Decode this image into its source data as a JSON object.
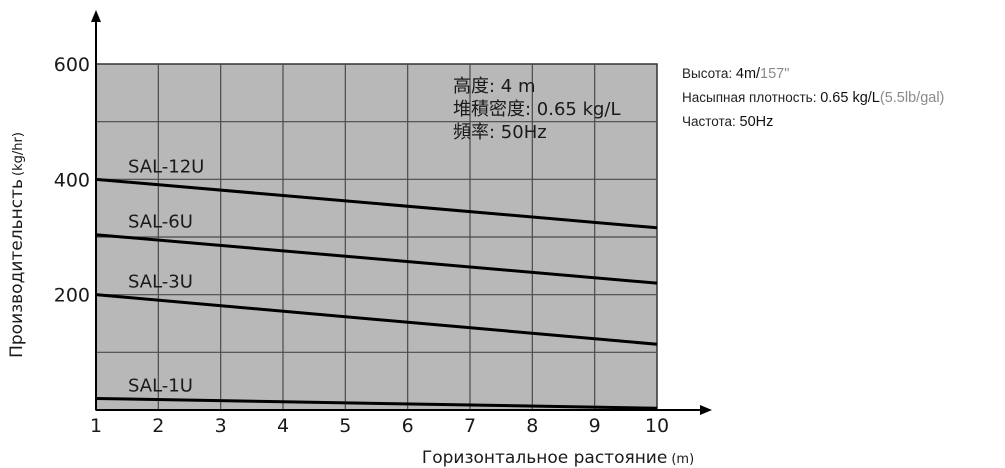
{
  "chart_data": {
    "type": "line",
    "ylabel": "Производительнсть",
    "ylabel_unit": "(kg/hr)",
    "xlabel": "Горизонтальное растояние",
    "xlabel_unit": "(m)",
    "xlim": [
      1,
      10
    ],
    "ylim": [
      0,
      600
    ],
    "x_ticks": [
      "1",
      "2",
      "3",
      "4",
      "5",
      "6",
      "7",
      "8",
      "9",
      "10"
    ],
    "y_ticks": [
      {
        "value": 600,
        "label": "600"
      },
      {
        "value": 400,
        "label": "400"
      },
      {
        "value": 200,
        "label": "200"
      }
    ],
    "grid": true,
    "series": [
      {
        "name": "SAL-12U",
        "x": [
          1,
          10
        ],
        "y": [
          400,
          316
        ]
      },
      {
        "name": "SAL-6U",
        "x": [
          1,
          10
        ],
        "y": [
          304,
          220
        ]
      },
      {
        "name": "SAL-3U",
        "x": [
          1,
          10
        ],
        "y": [
          200,
          114
        ]
      },
      {
        "name": "SAL-1U",
        "x": [
          1,
          10
        ],
        "y": [
          20,
          3
        ]
      }
    ],
    "annotations": [
      "高度: 4 m",
      "堆積密度: 0.65 kg/L",
      "頻率: 50Hz"
    ]
  },
  "side_notes": [
    {
      "label": "Высота: ",
      "value": "4m/",
      "alt": "157\""
    },
    {
      "label": "Насыпная плотность: ",
      "value": "0.65 kg/L",
      "alt": "(5.5lb/gal)"
    },
    {
      "label": "Частота: ",
      "value": "50Hz",
      "alt": ""
    }
  ],
  "colors": {
    "plot_bg": "#b8b8b8",
    "grid": "#4a4a4a",
    "line": "#000000"
  }
}
